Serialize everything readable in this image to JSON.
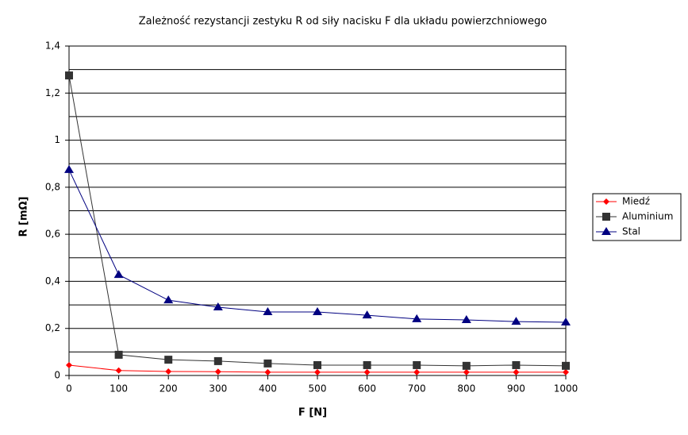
{
  "chart_data": {
    "type": "line",
    "title": "Zależność rezystancji zestyku R od siły nacisku F dla układu powierzchniowego",
    "x_label": "F [N]",
    "y_label": "R [mΩ]",
    "x": [
      0,
      100,
      200,
      300,
      400,
      500,
      600,
      700,
      800,
      900,
      1000
    ],
    "series": [
      {
        "name": "Miedź",
        "color": "#ff0000",
        "marker": "diamond",
        "values": [
          0.044,
          0.021,
          0.017,
          0.016,
          0.014,
          0.014,
          0.014,
          0.014,
          0.014,
          0.014,
          0.014
        ]
      },
      {
        "name": "Aluminium",
        "color": "#333333",
        "marker": "square",
        "values": [
          1.275,
          0.088,
          0.067,
          0.061,
          0.051,
          0.044,
          0.044,
          0.044,
          0.041,
          0.044,
          0.041
        ]
      },
      {
        "name": "Stal",
        "color": "#000080",
        "marker": "triangle",
        "values": [
          0.874,
          0.428,
          0.32,
          0.29,
          0.27,
          0.27,
          0.256,
          0.24,
          0.236,
          0.229,
          0.226
        ]
      }
    ],
    "xlim": [
      0,
      1000
    ],
    "xticks": [
      0,
      100,
      200,
      300,
      400,
      500,
      600,
      700,
      800,
      900,
      1000
    ],
    "ylim": [
      0,
      1.4
    ],
    "yticks": [
      0,
      {
        "value": 0.2,
        "label": "0,2"
      },
      {
        "value": 0.4,
        "label": "0,4"
      },
      {
        "value": 0.6,
        "label": "0,6"
      },
      {
        "value": 0.8,
        "label": "0,8"
      },
      1,
      {
        "value": 1.2,
        "label": "1,2"
      },
      {
        "value": 1.4,
        "label": "1,4"
      }
    ],
    "ygrid": [
      0.1,
      0.3,
      0.5,
      0.7,
      0.9,
      1.1,
      1.3
    ],
    "grid": true,
    "legend": "right"
  }
}
